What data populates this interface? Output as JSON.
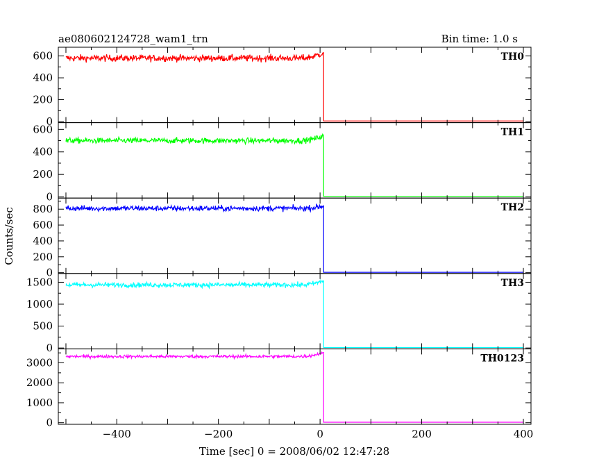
{
  "header": {
    "title": "ae080602124728_wam1_trn",
    "bin_time": "Bin time: 1.0 s"
  },
  "axes": {
    "xlabel": "Time [sec] 0 = 2008/06/02 12:47:28",
    "ylabel": "Counts/sec"
  },
  "chart_data": {
    "type": "line",
    "title": "ae080602124728_wam1_trn",
    "xlabel": "Time [sec] 0 = 2008/06/02 12:47:28",
    "ylabel": "Counts/sec",
    "xlim": [
      -515,
      415
    ],
    "x_ticks": [
      -400,
      -200,
      0,
      200,
      400
    ],
    "x_tick_labels": [
      "−400",
      "−200",
      "0",
      "200",
      "400"
    ],
    "drop_time": 7,
    "time_range": [
      -500,
      400
    ],
    "grid": false,
    "panels": [
      {
        "name": "TH0",
        "color": "#ff0000",
        "ylim": [
          -10,
          680
        ],
        "yticks": [
          0,
          200,
          400,
          600
        ],
        "level_before": 580,
        "noise": 22,
        "pre_drop_rise": 50,
        "level_after": 5,
        "series": [
          {
            "x": -500,
            "y": 575
          },
          {
            "x": -400,
            "y": 585
          },
          {
            "x": -300,
            "y": 580
          },
          {
            "x": -200,
            "y": 580
          },
          {
            "x": -100,
            "y": 585
          },
          {
            "x": 0,
            "y": 610
          },
          {
            "x": 7,
            "y": 5
          },
          {
            "x": 400,
            "y": 5
          }
        ]
      },
      {
        "name": "TH1",
        "color": "#00ff00",
        "ylim": [
          -10,
          660
        ],
        "yticks": [
          0,
          200,
          400,
          600
        ],
        "level_before": 500,
        "noise": 18,
        "pre_drop_rise": 45,
        "level_after": 5,
        "series": [
          {
            "x": -500,
            "y": 500
          },
          {
            "x": -400,
            "y": 505
          },
          {
            "x": -300,
            "y": 500
          },
          {
            "x": -200,
            "y": 500
          },
          {
            "x": -100,
            "y": 505
          },
          {
            "x": 0,
            "y": 540
          },
          {
            "x": 7,
            "y": 5
          },
          {
            "x": 400,
            "y": 5
          }
        ]
      },
      {
        "name": "TH2",
        "color": "#0000ff",
        "ylim": [
          -10,
          940
        ],
        "yticks": [
          0,
          200,
          400,
          600,
          800
        ],
        "level_before": 810,
        "noise": 25,
        "pre_drop_rise": 30,
        "level_after": 5,
        "series": [
          {
            "x": -500,
            "y": 810
          },
          {
            "x": -400,
            "y": 815
          },
          {
            "x": -300,
            "y": 805
          },
          {
            "x": -200,
            "y": 810
          },
          {
            "x": -100,
            "y": 810
          },
          {
            "x": 0,
            "y": 830
          },
          {
            "x": 7,
            "y": 5
          },
          {
            "x": 400,
            "y": 5
          }
        ]
      },
      {
        "name": "TH3",
        "color": "#00ffff",
        "ylim": [
          -20,
          1700
        ],
        "yticks": [
          0,
          500,
          1000,
          1500
        ],
        "level_before": 1440,
        "noise": 40,
        "pre_drop_rise": 90,
        "level_after": 10,
        "series": [
          {
            "x": -500,
            "y": 1440
          },
          {
            "x": -400,
            "y": 1450
          },
          {
            "x": -300,
            "y": 1440
          },
          {
            "x": -200,
            "y": 1440
          },
          {
            "x": -100,
            "y": 1445
          },
          {
            "x": 0,
            "y": 1500
          },
          {
            "x": 7,
            "y": 10
          },
          {
            "x": 400,
            "y": 10
          }
        ]
      },
      {
        "name": "TH0123",
        "color": "#ff00ff",
        "ylim": [
          -80,
          3700
        ],
        "yticks": [
          0,
          1000,
          2000,
          3000
        ],
        "level_before": 3320,
        "noise": 55,
        "pre_drop_rise": 200,
        "level_after": 25,
        "series": [
          {
            "x": -500,
            "y": 3320
          },
          {
            "x": -400,
            "y": 3330
          },
          {
            "x": -300,
            "y": 3310
          },
          {
            "x": -200,
            "y": 3320
          },
          {
            "x": -100,
            "y": 3330
          },
          {
            "x": 0,
            "y": 3450
          },
          {
            "x": 7,
            "y": 25
          },
          {
            "x": 400,
            "y": 25
          }
        ]
      }
    ]
  }
}
